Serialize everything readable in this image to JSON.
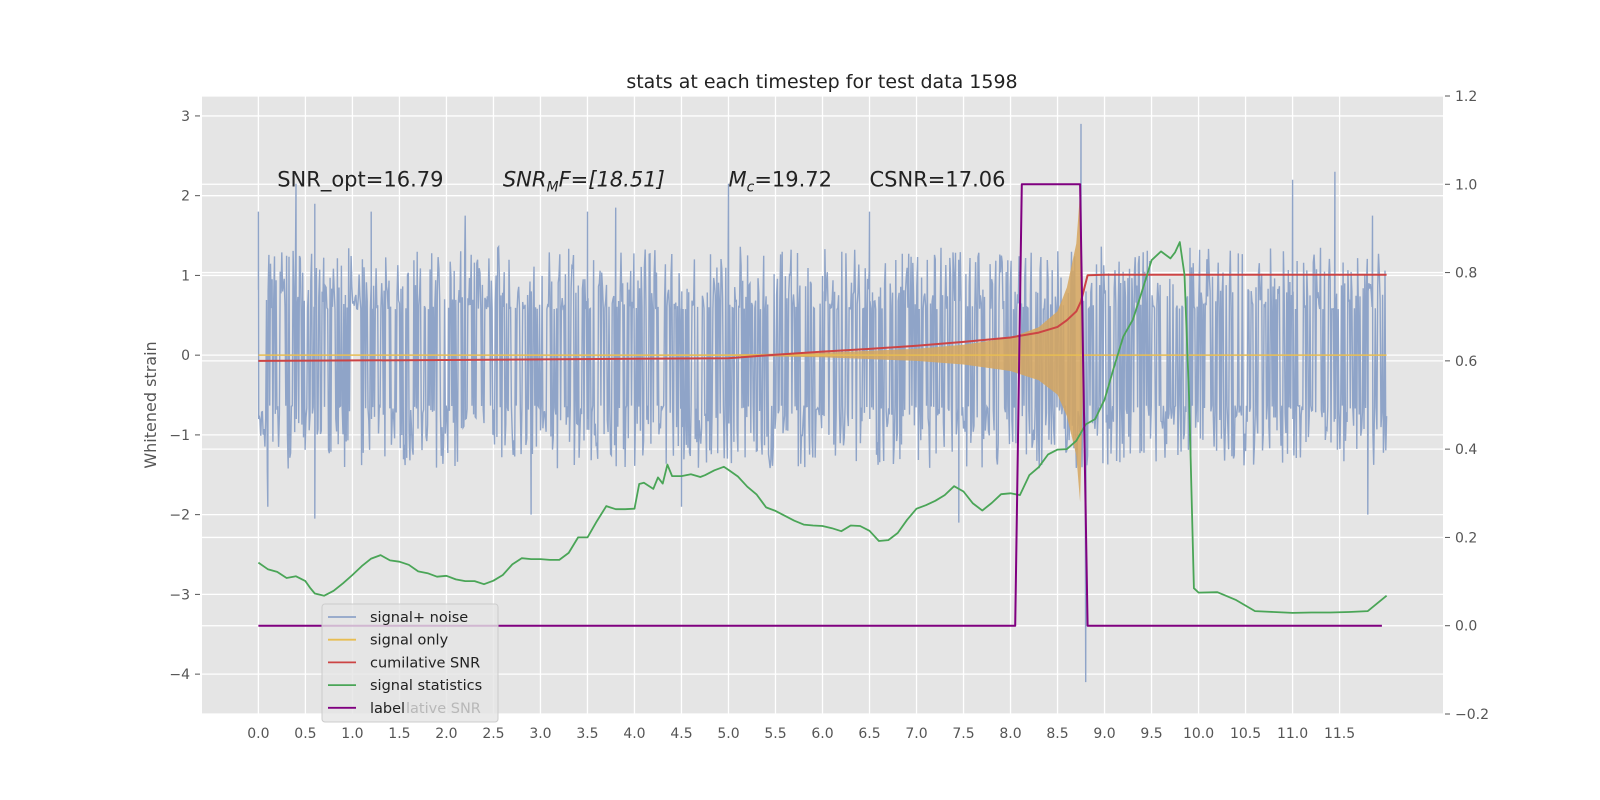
{
  "chart_data": {
    "type": "line",
    "title": "stats at each timestep for test data 1598",
    "xlabel": "",
    "ylabel": "Whitened strain",
    "xlim": [
      -0.6,
      12.6
    ],
    "ylim": [
      -4.5,
      3.25
    ],
    "y2lim": [
      -0.2,
      1.2
    ],
    "grid": true,
    "legend_position": "lower-left",
    "x_ticks": [
      "0.0",
      "0.5",
      "1.0",
      "1.5",
      "2.0",
      "2.5",
      "3.0",
      "3.5",
      "4.0",
      "4.5",
      "5.0",
      "5.5",
      "6.0",
      "6.5",
      "7.0",
      "7.5",
      "8.0",
      "8.5",
      "9.0",
      "9.5",
      "10.0",
      "10.5",
      "11.0",
      "11.5"
    ],
    "y_ticks": [
      "3",
      "2",
      "1",
      "0",
      "−1",
      "−2",
      "−3",
      "−4"
    ],
    "y2_ticks": [
      "1.2",
      "1.0",
      "0.8",
      "0.6",
      "0.4",
      "0.2",
      "0.0",
      "−0.2"
    ],
    "annotations": [
      {
        "kind": "plain",
        "text": "SNR_opt=16.79",
        "x": 0.2,
        "y": 2.2
      },
      {
        "kind": "snrmf",
        "var": "SNR",
        "sub": "M",
        "rest": "F=[18.51]",
        "x": 2.6,
        "y": 2.2
      },
      {
        "kind": "mc",
        "var": "M",
        "sub": "c",
        "rest": "=19.72",
        "x": 5.0,
        "y": 2.2
      },
      {
        "kind": "plain",
        "text": "CSNR=17.06",
        "x": 6.5,
        "y": 2.2
      }
    ],
    "legend": {
      "entries": [
        "signal+ noise",
        "signal only",
        "cumilative SNR",
        "signal statistics",
        "label"
      ],
      "ghost_text": "lative SNR"
    },
    "colors": {
      "background": "#e5e5e5",
      "grid": "#ffffff",
      "signal_noise": "#8fa4c8",
      "signal_only": "#e8bd52",
      "signal_fill": "#d6a65e",
      "cumulative_snr": "#cc4444",
      "signal_statistics": "#4aa557",
      "label": "#800080"
    },
    "series": [
      {
        "name": "signal+ noise",
        "axis": "left",
        "kind": "noise_envelope",
        "x_range": [
          0.0,
          12.0
        ],
        "typical_upper": 1.05,
        "typical_lower": -1.15,
        "spikes": [
          [
            0.0,
            1.8
          ],
          [
            0.4,
            2.15
          ],
          [
            0.6,
            1.9
          ],
          [
            1.2,
            1.8
          ],
          [
            2.2,
            1.75
          ],
          [
            3.5,
            1.8
          ],
          [
            3.8,
            1.85
          ],
          [
            5.0,
            2.15
          ],
          [
            6.5,
            1.8
          ],
          [
            8.75,
            2.9
          ],
          [
            11.0,
            2.2
          ],
          [
            11.45,
            2.3
          ],
          [
            11.85,
            1.75
          ],
          [
            0.1,
            -1.9
          ],
          [
            0.6,
            -2.05
          ],
          [
            2.9,
            -2.0
          ],
          [
            4.5,
            -1.9
          ],
          [
            7.45,
            -2.1
          ],
          [
            8.8,
            -4.1
          ],
          [
            11.8,
            -2.0
          ],
          [
            6.0,
            -0.75
          ]
        ]
      },
      {
        "name": "signal only",
        "axis": "left",
        "kind": "chirp_envelope",
        "points": [
          [
            0.0,
            0.0
          ],
          [
            5.0,
            0.01
          ],
          [
            6.0,
            0.03
          ],
          [
            7.0,
            0.08
          ],
          [
            7.5,
            0.13
          ],
          [
            8.0,
            0.22
          ],
          [
            8.3,
            0.35
          ],
          [
            8.5,
            0.55
          ],
          [
            8.6,
            0.85
          ],
          [
            8.7,
            1.4
          ],
          [
            8.74,
            2.05
          ],
          [
            8.78,
            0.0
          ],
          [
            12.0,
            0.0
          ]
        ]
      },
      {
        "name": "cumilative SNR",
        "axis": "right",
        "points": [
          [
            0.0,
            0.6
          ],
          [
            2.0,
            0.602
          ],
          [
            4.0,
            0.605
          ],
          [
            5.0,
            0.606
          ],
          [
            5.5,
            0.614
          ],
          [
            6.0,
            0.621
          ],
          [
            6.5,
            0.627
          ],
          [
            7.0,
            0.634
          ],
          [
            7.5,
            0.643
          ],
          [
            8.0,
            0.653
          ],
          [
            8.3,
            0.664
          ],
          [
            8.5,
            0.677
          ],
          [
            8.6,
            0.692
          ],
          [
            8.7,
            0.712
          ],
          [
            8.75,
            0.735
          ],
          [
            8.82,
            0.794
          ],
          [
            9.0,
            0.795
          ],
          [
            10.0,
            0.795
          ],
          [
            11.0,
            0.795
          ],
          [
            12.0,
            0.795
          ]
        ]
      },
      {
        "name": "signal statistics",
        "axis": "right",
        "points": [
          [
            0.0,
            0.143
          ],
          [
            0.1,
            0.128
          ],
          [
            0.2,
            0.122
          ],
          [
            0.3,
            0.108
          ],
          [
            0.4,
            0.112
          ],
          [
            0.5,
            0.101
          ],
          [
            0.55,
            0.086
          ],
          [
            0.6,
            0.073
          ],
          [
            0.7,
            0.068
          ],
          [
            0.8,
            0.079
          ],
          [
            0.9,
            0.096
          ],
          [
            1.0,
            0.115
          ],
          [
            1.1,
            0.135
          ],
          [
            1.2,
            0.152
          ],
          [
            1.3,
            0.16
          ],
          [
            1.4,
            0.148
          ],
          [
            1.5,
            0.145
          ],
          [
            1.6,
            0.138
          ],
          [
            1.7,
            0.123
          ],
          [
            1.8,
            0.119
          ],
          [
            1.9,
            0.111
          ],
          [
            2.0,
            0.113
          ],
          [
            2.1,
            0.105
          ],
          [
            2.2,
            0.101
          ],
          [
            2.3,
            0.101
          ],
          [
            2.4,
            0.094
          ],
          [
            2.5,
            0.102
          ],
          [
            2.6,
            0.115
          ],
          [
            2.7,
            0.139
          ],
          [
            2.8,
            0.153
          ],
          [
            2.9,
            0.151
          ],
          [
            3.0,
            0.151
          ],
          [
            3.1,
            0.149
          ],
          [
            3.2,
            0.149
          ],
          [
            3.3,
            0.165
          ],
          [
            3.4,
            0.2
          ],
          [
            3.5,
            0.2
          ],
          [
            3.6,
            0.237
          ],
          [
            3.7,
            0.271
          ],
          [
            3.8,
            0.264
          ],
          [
            3.9,
            0.264
          ],
          [
            4.0,
            0.265
          ],
          [
            4.05,
            0.321
          ],
          [
            4.1,
            0.324
          ],
          [
            4.2,
            0.31
          ],
          [
            4.25,
            0.336
          ],
          [
            4.3,
            0.322
          ],
          [
            4.35,
            0.365
          ],
          [
            4.4,
            0.339
          ],
          [
            4.5,
            0.339
          ],
          [
            4.6,
            0.343
          ],
          [
            4.7,
            0.337
          ],
          [
            4.75,
            0.341
          ],
          [
            4.85,
            0.352
          ],
          [
            4.95,
            0.36
          ],
          [
            5.0,
            0.353
          ],
          [
            5.1,
            0.338
          ],
          [
            5.2,
            0.315
          ],
          [
            5.3,
            0.297
          ],
          [
            5.4,
            0.268
          ],
          [
            5.5,
            0.26
          ],
          [
            5.6,
            0.249
          ],
          [
            5.7,
            0.238
          ],
          [
            5.8,
            0.229
          ],
          [
            5.9,
            0.227
          ],
          [
            6.0,
            0.226
          ],
          [
            6.1,
            0.221
          ],
          [
            6.2,
            0.214
          ],
          [
            6.3,
            0.227
          ],
          [
            6.4,
            0.226
          ],
          [
            6.5,
            0.215
          ],
          [
            6.6,
            0.192
          ],
          [
            6.7,
            0.194
          ],
          [
            6.8,
            0.21
          ],
          [
            6.9,
            0.24
          ],
          [
            7.0,
            0.265
          ],
          [
            7.1,
            0.273
          ],
          [
            7.2,
            0.283
          ],
          [
            7.3,
            0.296
          ],
          [
            7.4,
            0.316
          ],
          [
            7.5,
            0.304
          ],
          [
            7.6,
            0.277
          ],
          [
            7.7,
            0.261
          ],
          [
            7.8,
            0.278
          ],
          [
            7.9,
            0.298
          ],
          [
            8.0,
            0.3
          ],
          [
            8.1,
            0.296
          ],
          [
            8.2,
            0.341
          ],
          [
            8.3,
            0.359
          ],
          [
            8.4,
            0.388
          ],
          [
            8.5,
            0.399
          ],
          [
            8.6,
            0.4
          ],
          [
            8.7,
            0.419
          ],
          [
            8.8,
            0.456
          ],
          [
            8.9,
            0.468
          ],
          [
            9.0,
            0.512
          ],
          [
            9.1,
            0.585
          ],
          [
            9.2,
            0.655
          ],
          [
            9.3,
            0.693
          ],
          [
            9.4,
            0.759
          ],
          [
            9.5,
            0.828
          ],
          [
            9.6,
            0.848
          ],
          [
            9.7,
            0.832
          ],
          [
            9.75,
            0.846
          ],
          [
            9.8,
            0.869
          ],
          [
            9.85,
            0.795
          ],
          [
            9.9,
            0.51
          ],
          [
            9.95,
            0.085
          ],
          [
            10.0,
            0.075
          ],
          [
            10.2,
            0.076
          ],
          [
            10.4,
            0.058
          ],
          [
            10.6,
            0.033
          ],
          [
            10.8,
            0.031
          ],
          [
            11.0,
            0.029
          ],
          [
            11.2,
            0.03
          ],
          [
            11.4,
            0.03
          ],
          [
            11.6,
            0.031
          ],
          [
            11.8,
            0.033
          ],
          [
            12.0,
            0.068
          ]
        ]
      },
      {
        "name": "label",
        "axis": "right",
        "points": [
          [
            0.0,
            0.0
          ],
          [
            8.05,
            0.0
          ],
          [
            8.12,
            1.0
          ],
          [
            8.74,
            1.0
          ],
          [
            8.82,
            0.0
          ],
          [
            11.95,
            0.0
          ]
        ]
      }
    ]
  }
}
